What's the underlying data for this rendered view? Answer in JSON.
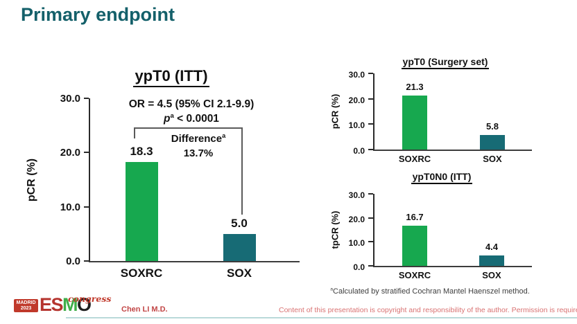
{
  "title": "Primary endpoint",
  "colors": {
    "title_teal": "#14606A",
    "bar_green": "#17A84F",
    "bar_teal": "#176B75",
    "footer_red": "#C0392B",
    "copyright_red": "#D97272"
  },
  "chart_data": [
    {
      "type": "bar",
      "title": "ypT0 (ITT)",
      "ylabel": "pCR (%)",
      "categories": [
        "SOXRC",
        "SOX"
      ],
      "values": [
        18.3,
        5.0
      ],
      "value_labels": [
        "18.3",
        "5.0"
      ],
      "ylim": [
        0,
        30
      ],
      "ytick_values": [
        0,
        10,
        20,
        30
      ],
      "ytick_labels": [
        "0.0",
        "10.0",
        "20.0",
        "30.0"
      ],
      "grid": "off",
      "annotations": {
        "or_text": "OR = 4.5 (95% CI 2.1-9.9)",
        "p_italic": "p",
        "p_sup": "a",
        "p_rest": " < 0.0001",
        "difference_word": "Difference",
        "difference_sup": "a",
        "difference_value": "13.7%"
      }
    },
    {
      "type": "bar",
      "title": "ypT0 (Surgery set)",
      "ylabel": "pCR (%)",
      "categories": [
        "SOXRC",
        "SOX"
      ],
      "values": [
        21.3,
        5.8
      ],
      "value_labels": [
        "21.3",
        "5.8"
      ],
      "ylim": [
        0,
        30
      ],
      "ytick_values": [
        0,
        10,
        20,
        30
      ],
      "ytick_labels": [
        "0.0",
        "10.0",
        "20.0",
        "30.0"
      ],
      "grid": "off"
    },
    {
      "type": "bar",
      "title": "ypT0N0 (ITT)",
      "ylabel": "tpCR (%)",
      "categories": [
        "SOXRC",
        "SOX"
      ],
      "values": [
        16.7,
        4.4
      ],
      "value_labels": [
        "16.7",
        "4.4"
      ],
      "ylim": [
        0,
        30
      ],
      "ytick_values": [
        0,
        10,
        20,
        30
      ],
      "ytick_labels": [
        "0.0",
        "10.0",
        "20.0",
        "30.0"
      ],
      "grid": "off"
    }
  ],
  "footnote": {
    "sup": "a",
    "text": "Calculated by stratified Cochran Mantel Haenszel method."
  },
  "footer": {
    "logo": {
      "badge_line1": "MADRID",
      "badge_line2": "2023",
      "letters": [
        "E",
        "S",
        "M",
        "O"
      ],
      "congress": "congress"
    },
    "author": "Chen LI M.D.",
    "copyright": "Content of this presentation is copyright and responsibility of the author. Permission is required for re-use."
  }
}
